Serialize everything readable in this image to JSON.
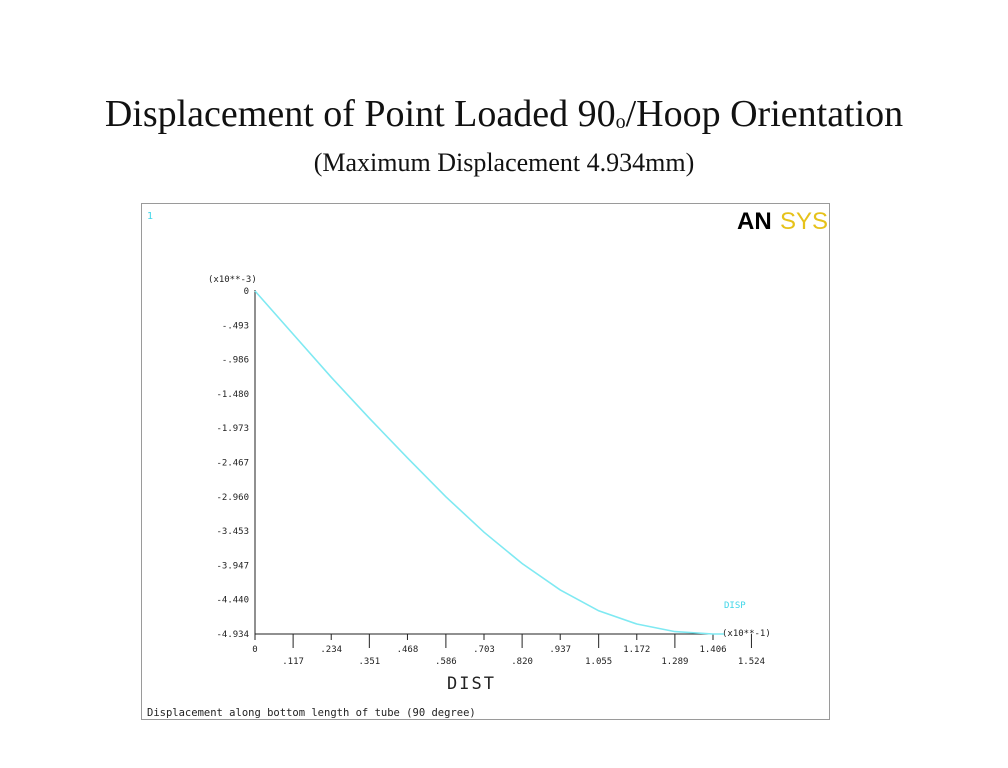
{
  "slide": {
    "title_main": "Displacement of Point Loaded 90",
    "title_sup": "o",
    "title_rest": "/Hoop Orientation",
    "subtitle": "(Maximum Displacement 4.934mm)"
  },
  "plot": {
    "window_number": "1",
    "logo_an": "AN",
    "logo_sys": "SYS",
    "logo_colors": {
      "an": "#000000",
      "sys": "#e6c21a"
    },
    "curve_color": "#7fe9f2",
    "footer": "Displacement along bottom length of tube (90 degree)"
  },
  "chart_data": {
    "type": "line",
    "title": "",
    "xlabel": "DIST",
    "ylabel": "",
    "x_multiplier": "(x10**-1)",
    "y_multiplier": "(x10**-3)",
    "xlim": [
      0,
      1.524
    ],
    "ylim": [
      -4.934,
      0
    ],
    "x_ticks_top": [
      "0",
      ".234",
      ".468",
      ".703",
      ".937",
      "1.172",
      "1.406"
    ],
    "x_ticks_bottom": [
      ".117",
      ".351",
      ".586",
      ".820",
      "1.055",
      "1.289",
      "1.524"
    ],
    "x_tick_values_top": [
      0,
      0.234,
      0.468,
      0.703,
      0.937,
      1.172,
      1.406
    ],
    "x_tick_values_bottom": [
      0.117,
      0.351,
      0.586,
      0.82,
      1.055,
      1.289,
      1.524
    ],
    "y_ticks": [
      "0",
      "-.493",
      "-.986",
      "-1.480",
      "-1.973",
      "-2.467",
      "-2.960",
      "-3.453",
      "-3.947",
      "-4.440",
      "-4.934"
    ],
    "y_tick_values": [
      0,
      -0.493,
      -0.986,
      -1.48,
      -1.973,
      -2.467,
      -2.96,
      -3.453,
      -3.947,
      -4.44,
      -4.934
    ],
    "series": [
      {
        "name": "DISP",
        "x": [
          0,
          0.117,
          0.234,
          0.351,
          0.468,
          0.586,
          0.703,
          0.82,
          0.937,
          1.055,
          1.172,
          1.289,
          1.406,
          1.44
        ],
        "y": [
          0,
          -0.62,
          -1.24,
          -1.83,
          -2.4,
          -2.96,
          -3.47,
          -3.92,
          -4.3,
          -4.6,
          -4.79,
          -4.9,
          -4.934,
          -4.934
        ]
      }
    ]
  }
}
